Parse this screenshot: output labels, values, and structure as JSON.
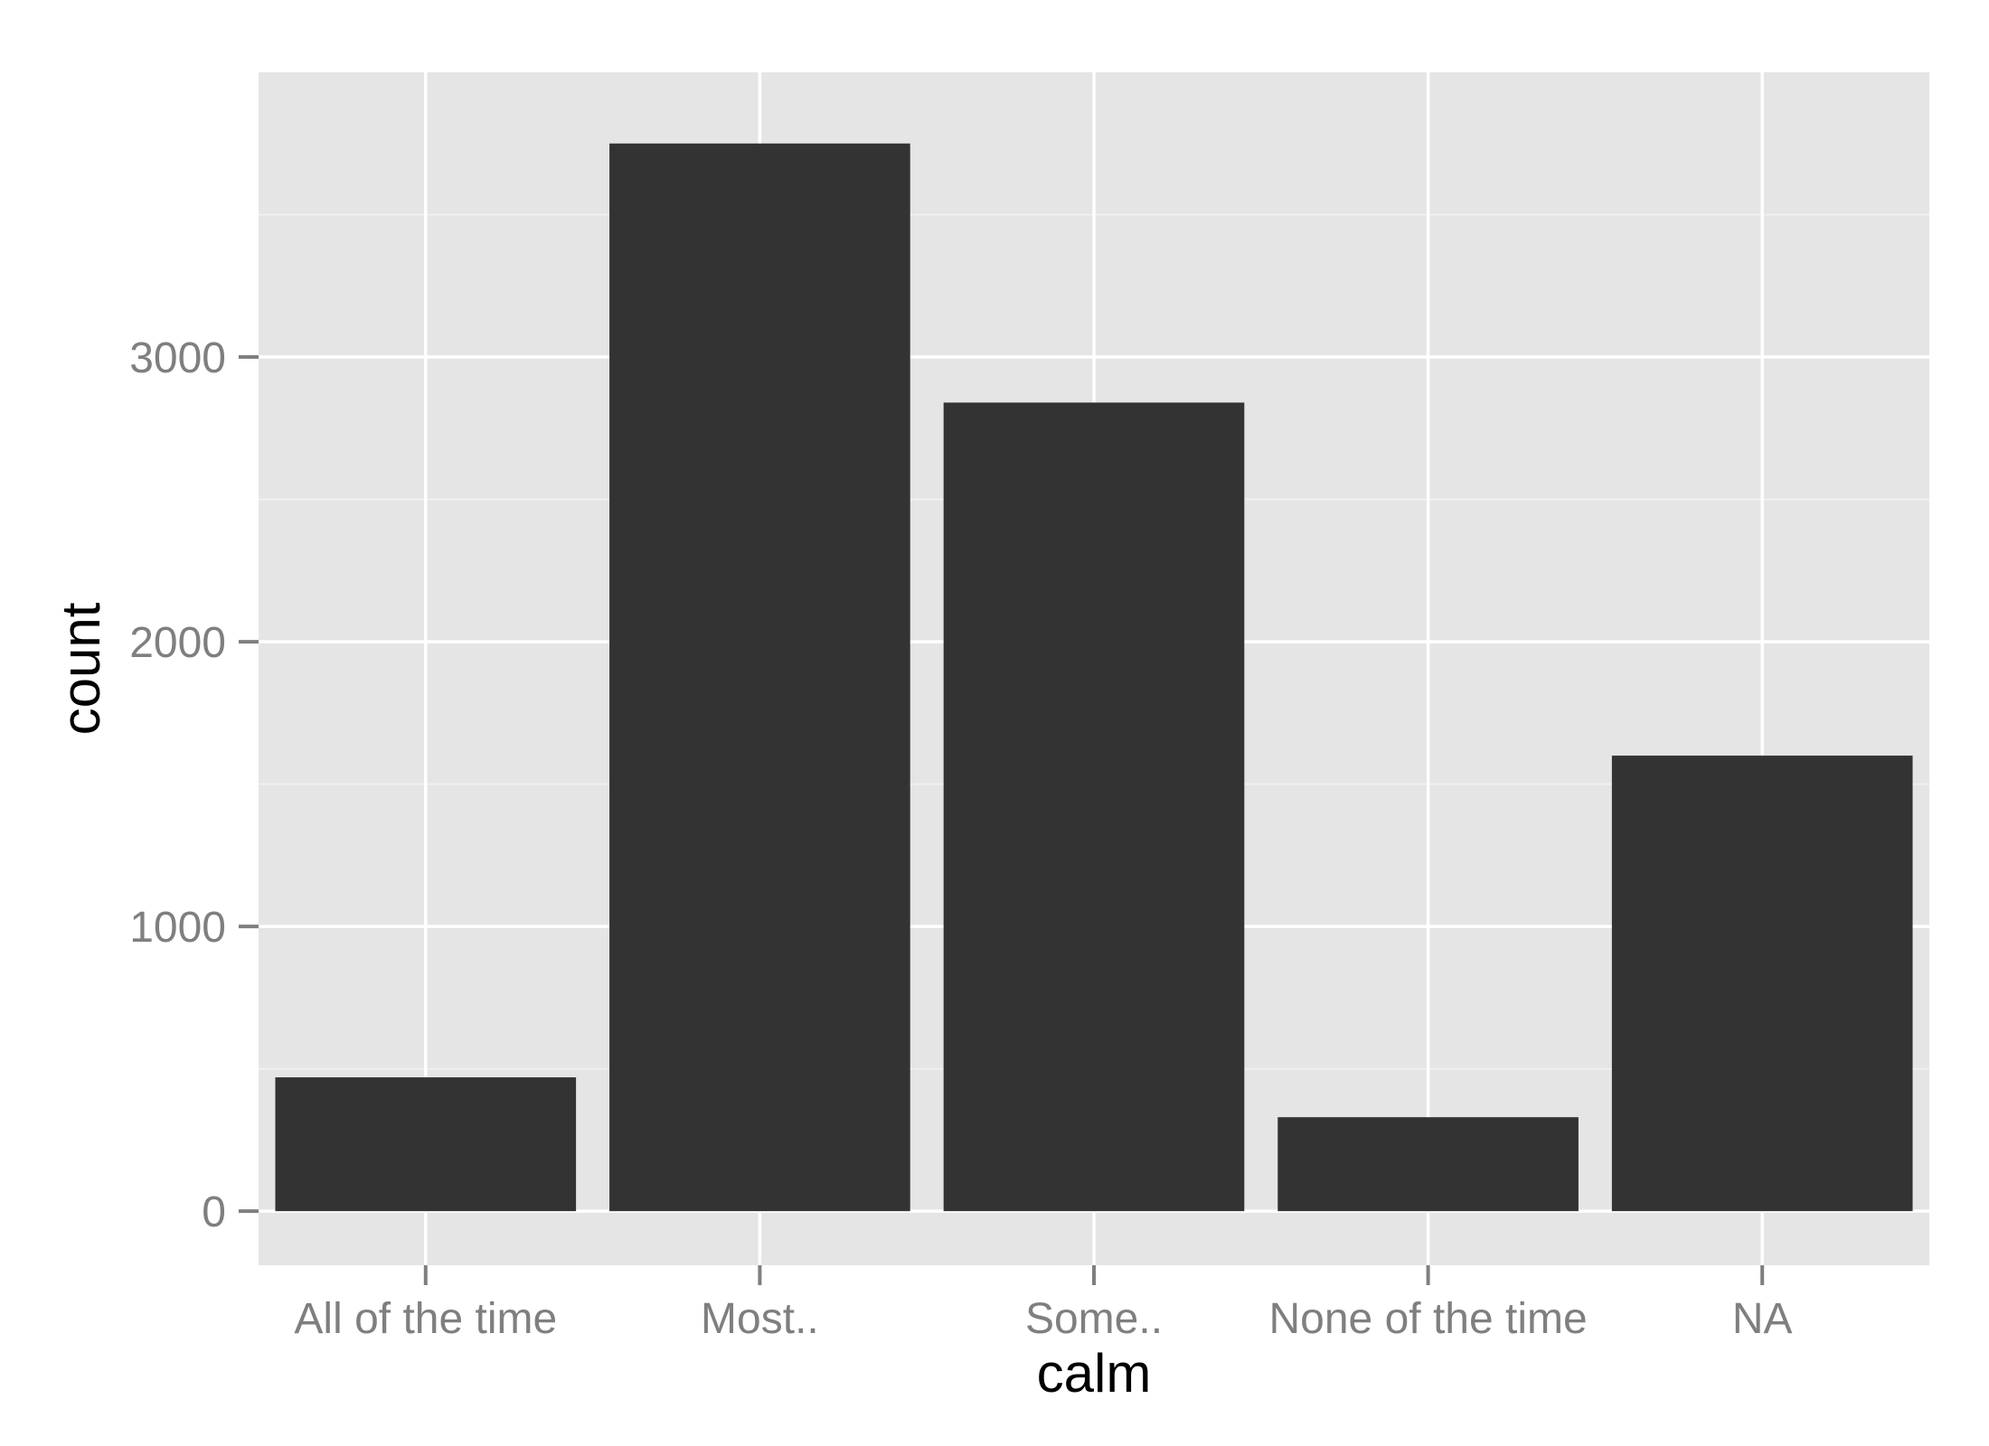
{
  "chart_data": {
    "type": "bar",
    "categories": [
      "All of the time",
      "Most..",
      "Some..",
      "None of the time",
      "NA"
    ],
    "values": [
      470,
      3750,
      2840,
      330,
      1600
    ],
    "xlabel": "calm",
    "ylabel": "count",
    "yticks": [
      0,
      1000,
      2000,
      3000
    ],
    "ylim": [
      -190,
      4000
    ],
    "grid": true,
    "colors": {
      "bar": "#333333",
      "panel": "#e5e5e5",
      "grid": "#ffffff",
      "tick_label": "#7f7f7f"
    }
  }
}
